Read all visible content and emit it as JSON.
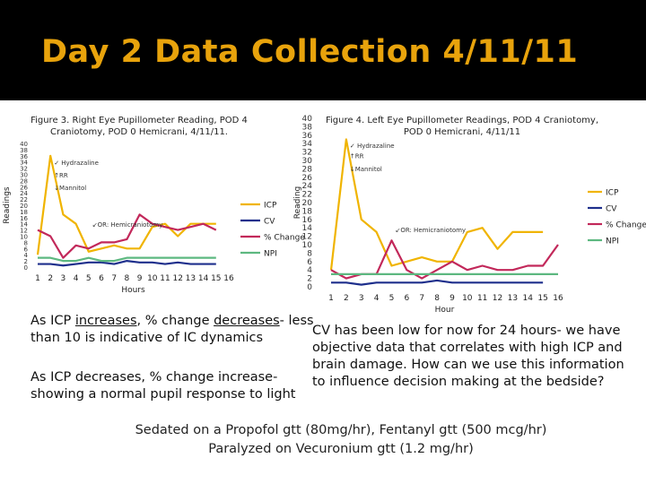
{
  "slide": {
    "title": "Day 2 Data Collection 4/11/11",
    "colors": {
      "banner": "#000000",
      "title": "#e8a30c",
      "ICP": "#f0b400",
      "CV": "#1e2f8c",
      "pct": "#c2285a",
      "NPI": "#5db880"
    }
  },
  "chart_data": [
    {
      "type": "line",
      "title": "Figure 3. Right Eye Pupillometer Reading, POD 4 Craniotomy, POD 0 Hemicrani, 4/11/11.",
      "xlabel": "Hours",
      "ylabel": "Readings",
      "x": [
        1,
        2,
        3,
        4,
        5,
        6,
        7,
        8,
        9,
        10,
        11,
        12,
        13,
        14,
        15,
        16
      ],
      "ylim": [
        0,
        40
      ],
      "yticks": [
        0,
        2,
        4,
        6,
        8,
        10,
        12,
        14,
        16,
        18,
        20,
        22,
        24,
        26,
        28,
        30,
        32,
        34,
        36,
        38,
        40
      ],
      "series": [
        {
          "name": "ICP",
          "values": [
            4,
            36,
            17,
            14,
            5,
            6,
            7,
            6,
            6,
            13,
            14,
            10,
            14,
            14,
            14,
            null
          ]
        },
        {
          "name": "CV",
          "values": [
            1,
            1,
            0.5,
            1,
            1.5,
            1.5,
            1,
            2,
            1.5,
            1.5,
            1,
            1.5,
            1,
            1,
            1,
            null
          ]
        },
        {
          "name": "% Change",
          "values": [
            12,
            10,
            3,
            7,
            6,
            8,
            8,
            9,
            17,
            14,
            13,
            12,
            13,
            14,
            12,
            null
          ]
        },
        {
          "name": "NPI",
          "values": [
            3,
            3,
            2,
            2,
            3,
            2,
            2,
            3,
            3,
            3,
            3,
            3,
            3,
            3,
            3,
            null
          ]
        }
      ],
      "annotations": [
        {
          "text": "✓ Hydrazaline",
          "x": 2,
          "y": 33
        },
        {
          "text": "↑RR",
          "x": 2,
          "y": 29
        },
        {
          "text": "↓Mannitol",
          "x": 2,
          "y": 25
        },
        {
          "text": "↙OR: Hemicraniotomy",
          "x": 5,
          "y": 13
        }
      ]
    },
    {
      "type": "line",
      "title": "Figure 4. Left Eye Pupillometer Readings, POD 4 Craniotomy, POD 0 Hemicrani, 4/11/11",
      "xlabel": "Hour",
      "ylabel": "Reading",
      "x": [
        1,
        2,
        3,
        4,
        5,
        6,
        7,
        8,
        9,
        10,
        11,
        12,
        13,
        14,
        15,
        16
      ],
      "ylim": [
        0,
        40
      ],
      "yticks": [
        0,
        2,
        4,
        6,
        8,
        10,
        12,
        14,
        16,
        18,
        20,
        22,
        24,
        26,
        28,
        30,
        32,
        34,
        36,
        38,
        40
      ],
      "series": [
        {
          "name": "ICP",
          "values": [
            4,
            35,
            16,
            13,
            5,
            6,
            7,
            6,
            6,
            13,
            14,
            9,
            13,
            13,
            13,
            null
          ]
        },
        {
          "name": "CV",
          "values": [
            1,
            1,
            0.5,
            1,
            1,
            1,
            1,
            1.5,
            1,
            1,
            1,
            1,
            1,
            1,
            1,
            null
          ]
        },
        {
          "name": "% Change",
          "values": [
            4,
            2,
            3,
            3,
            11,
            4,
            2,
            4,
            6,
            4,
            5,
            4,
            4,
            5,
            5,
            10
          ]
        },
        {
          "name": "NPI",
          "values": [
            3,
            3,
            3,
            3,
            3,
            3,
            3,
            3,
            3,
            3,
            3,
            3,
            3,
            3,
            3,
            3
          ]
        }
      ],
      "annotations": [
        {
          "text": "✓ Hydrazaline",
          "x": 2,
          "y": 33
        },
        {
          "text": "↑RR",
          "x": 2,
          "y": 30.5
        },
        {
          "text": "↓Mannitol",
          "x": 2,
          "y": 27.5
        },
        {
          "text": "↙OR: Hemicraniotomy",
          "x": 5,
          "y": 13
        }
      ]
    }
  ],
  "notes": {
    "icp_inc_1": "As ICP ",
    "icp_inc_2": "increases",
    "icp_inc_3": ", % change ",
    "icp_inc_4": "decreases",
    "icp_inc_5": "- less than 10 is indicative of IC dynamics",
    "icp_dec": "As ICP decreases, % change increase- showing a normal pupil response to light",
    "cv_text": "CV has been low for now for 24 hours- we have objective data that correlates with high ICP and brain damage. How can we use this information to influence decision making at the bedside?",
    "sedation_line1": "Sedated on a Propofol gtt (80mg/hr), Fentanyl gtt (500 mcg/hr)",
    "sedation_line2": "Paralyzed on Vecuronium gtt (1.2 mg/hr)"
  }
}
